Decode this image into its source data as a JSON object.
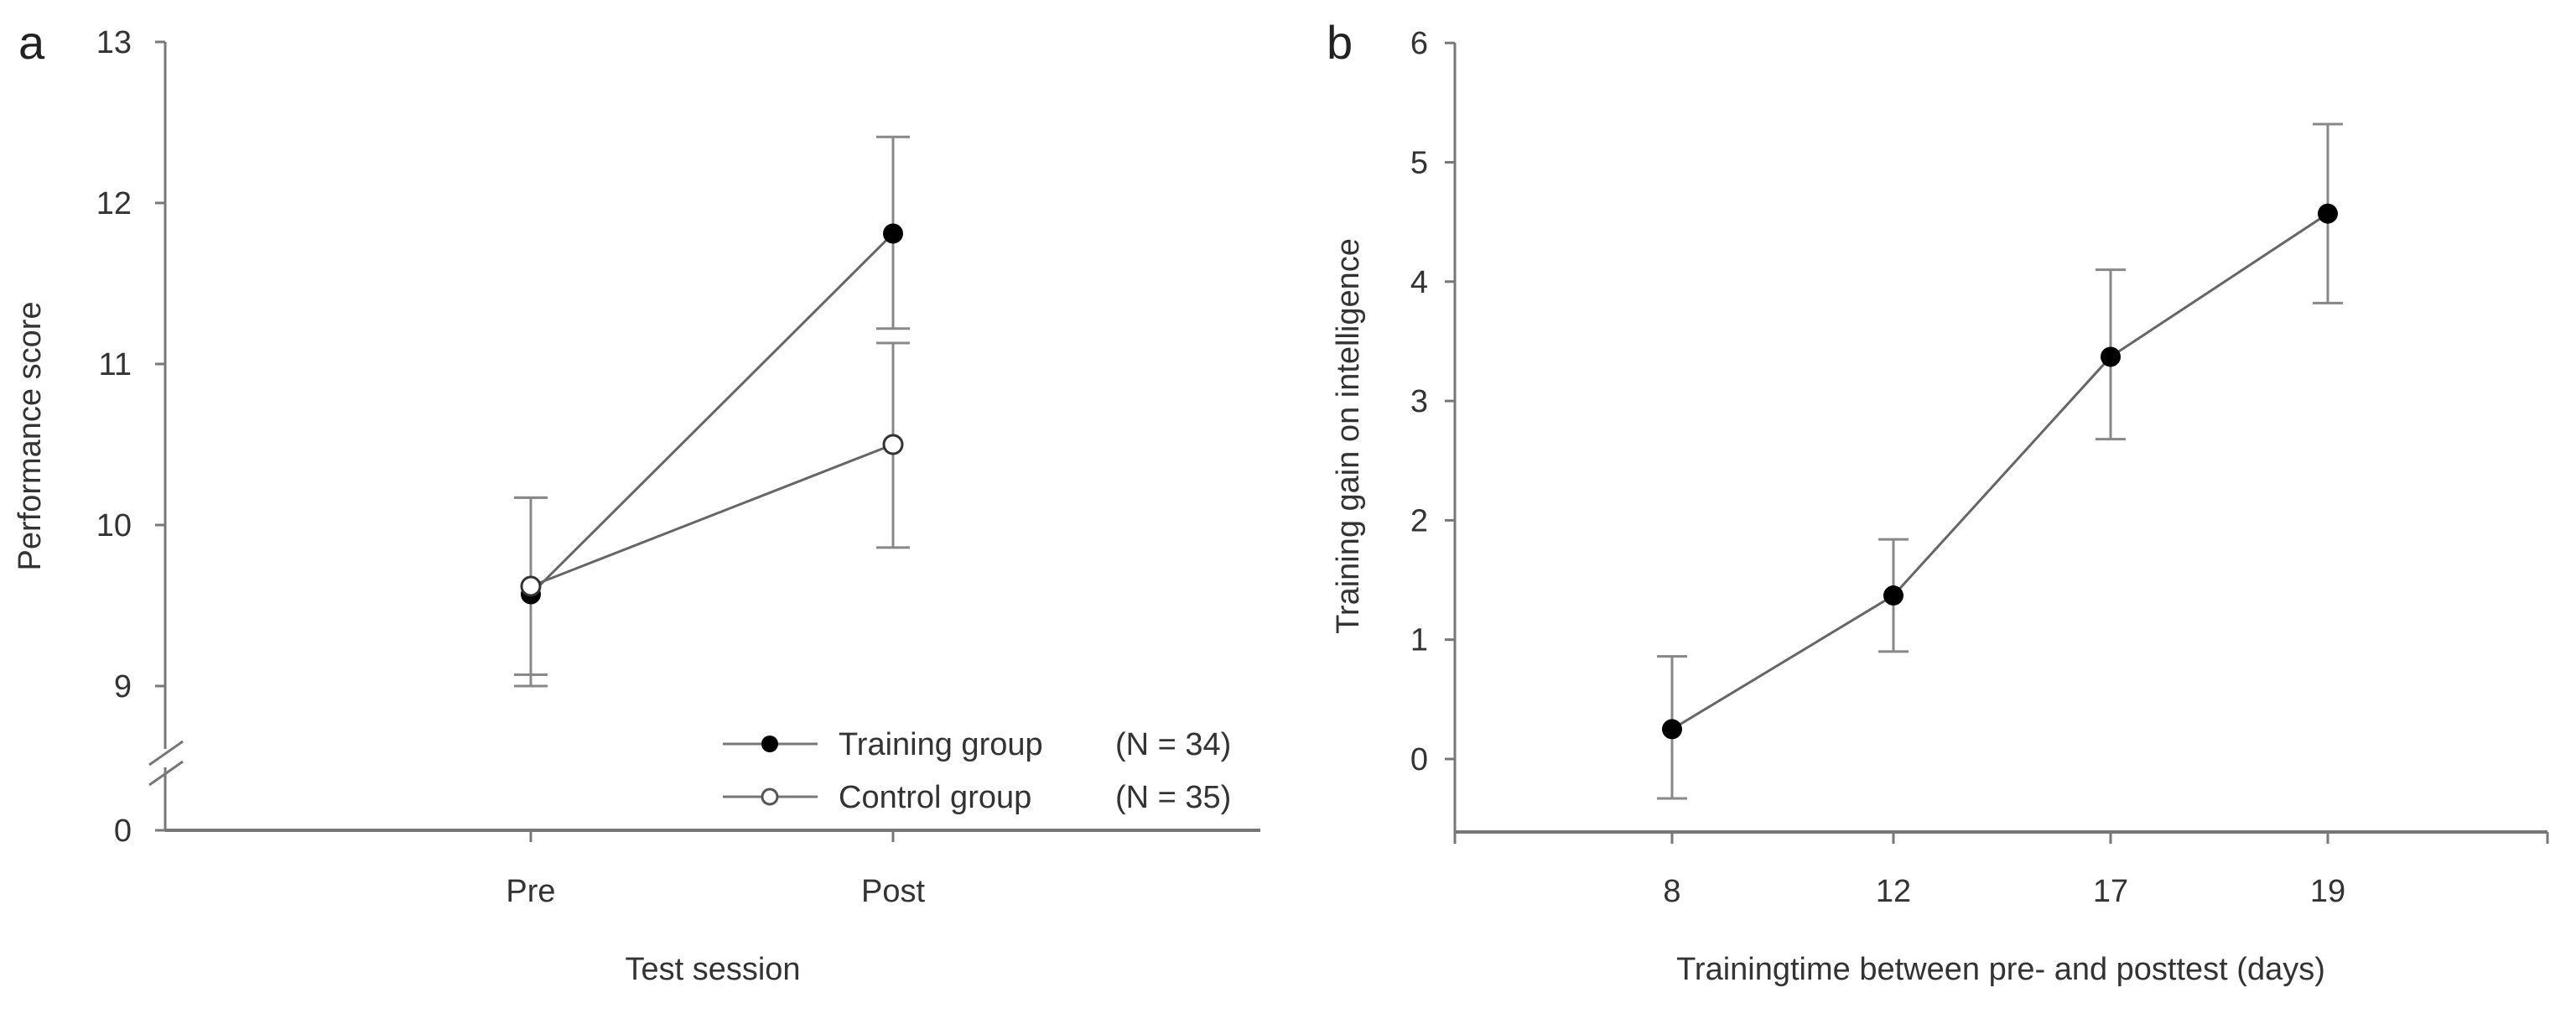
{
  "figure": {
    "panels": [
      {
        "letter": "a"
      },
      {
        "letter": "b"
      }
    ]
  },
  "chart_data": [
    {
      "panel": "a",
      "type": "line",
      "title": "",
      "xlabel": "Test session",
      "ylabel": "Performance score",
      "categories": [
        "Pre",
        "Post"
      ],
      "yticks": [
        0,
        9,
        10,
        11,
        12,
        13
      ],
      "ylim": [
        9,
        13
      ],
      "axis_break": "between 0 and 9",
      "grid": false,
      "legend_position": "lower right",
      "series": [
        {
          "name": "Training group",
          "n_label": "(N = 34)",
          "marker": "filled-circle",
          "values": [
            9.57,
            11.81
          ],
          "error_upper": [
            10.17,
            12.41
          ],
          "error_lower": [
            9.07,
            11.22
          ]
        },
        {
          "name": "Control group",
          "n_label": "(N = 35)",
          "marker": "open-circle",
          "values": [
            9.62,
            10.5
          ],
          "error_upper": [
            10.17,
            11.13
          ],
          "error_lower": [
            9.0,
            9.86
          ]
        }
      ]
    },
    {
      "panel": "b",
      "type": "line",
      "title": "",
      "xlabel": "Trainingtime between pre- and posttest (days)",
      "ylabel": "Training gain on intelligence",
      "categories": [
        "8",
        "12",
        "17",
        "19"
      ],
      "yticks": [
        0,
        1,
        2,
        3,
        4,
        5,
        6
      ],
      "ylim": [
        -0.6,
        6
      ],
      "grid": false,
      "series": [
        {
          "name": "Training gain",
          "marker": "filled-circle",
          "values": [
            0.25,
            1.37,
            3.37,
            4.57
          ],
          "error_upper": [
            0.86,
            1.84,
            4.1,
            5.32
          ],
          "error_lower": [
            -0.33,
            0.9,
            2.68,
            3.82
          ]
        }
      ]
    }
  ],
  "colors": {
    "axis": "#777777",
    "line": "#666666",
    "errorbar": "#888888",
    "marker_fill": "#000000",
    "open_marker_fill": "#ffffff",
    "text": "#333333"
  }
}
